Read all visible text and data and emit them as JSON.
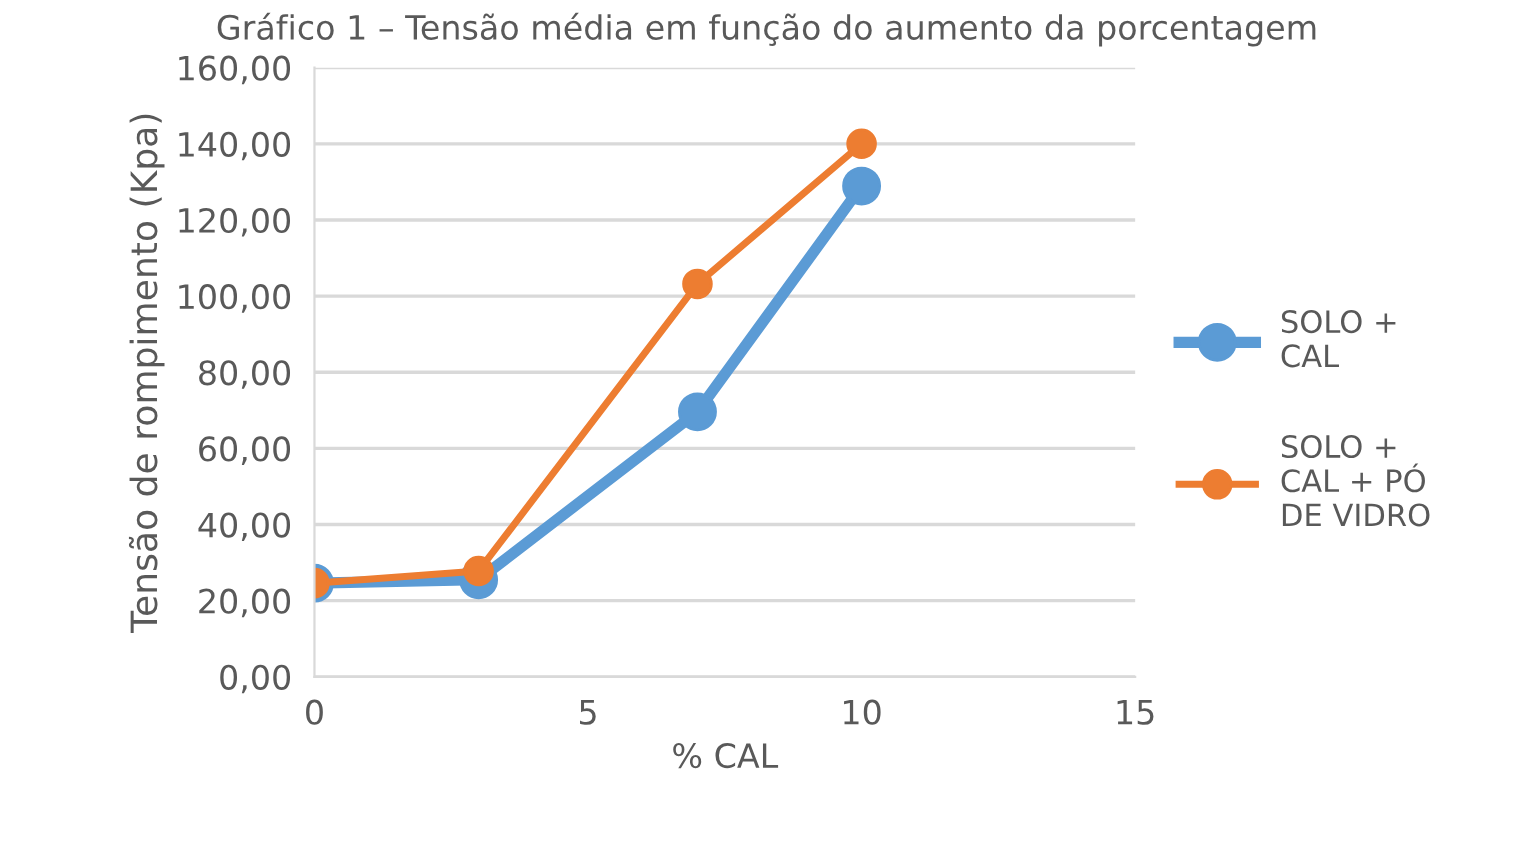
{
  "chart_data": {
    "type": "line",
    "title": "Gráfico 1 – Tensão média em função do aumento da porcentagem",
    "xlabel": "% CAL",
    "ylabel": "Tensão de rompimento (Kpa)",
    "x": [
      0,
      3,
      7,
      10
    ],
    "series": [
      {
        "name": "SOLO + CAL",
        "color": "#5b9bd5",
        "values": [
          24.6,
          25.5,
          69.6,
          128.9
        ]
      },
      {
        "name": "SOLO + CAL + PÓ DE VIDRO",
        "color": "#ed7d31",
        "values": [
          24.6,
          27.8,
          103.2,
          140.0
        ]
      }
    ],
    "xlim": [
      0,
      15
    ],
    "xticks": [
      0,
      5,
      10,
      15
    ],
    "ylim": [
      0,
      160
    ],
    "yticks": [
      {
        "value": 0,
        "label": "0,00"
      },
      {
        "value": 20,
        "label": "20,00"
      },
      {
        "value": 40,
        "label": "40,00"
      },
      {
        "value": 60,
        "label": "60,00"
      },
      {
        "value": 80,
        "label": "80,00"
      },
      {
        "value": 100,
        "label": "100,00"
      },
      {
        "value": 120,
        "label": "120,00"
      },
      {
        "value": 140,
        "label": "140,00"
      },
      {
        "value": 160,
        "label": "160,00"
      }
    ],
    "grid": "y",
    "legend": "right",
    "marker": "circle",
    "line_style": "solid"
  }
}
